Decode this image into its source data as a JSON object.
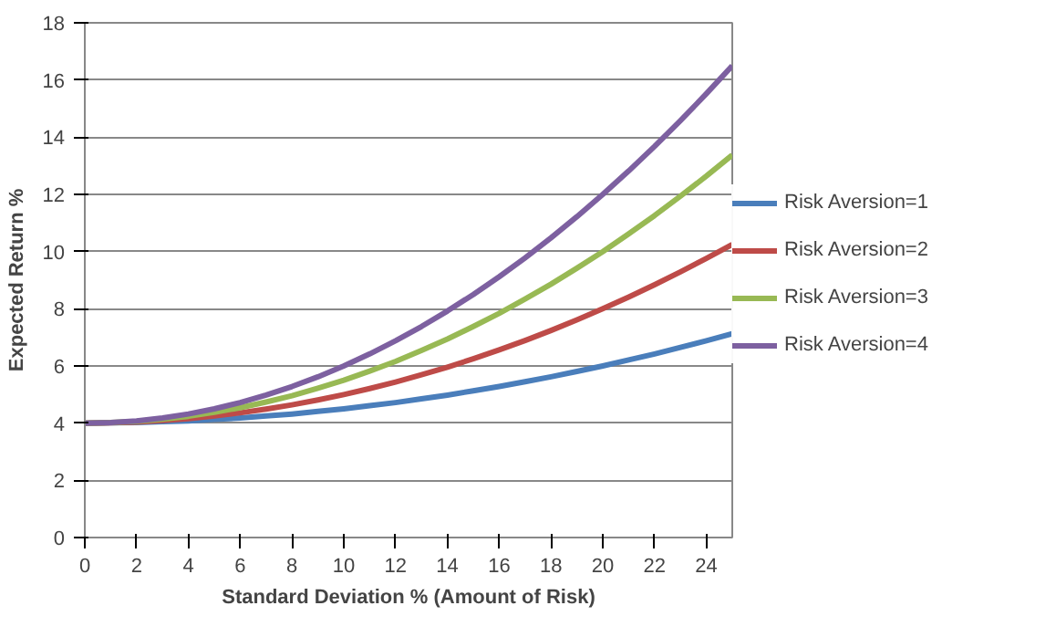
{
  "chart_data": {
    "type": "line",
    "xlabel": "Standard Deviation % (Amount of Risk)",
    "ylabel": "Expected Return %",
    "x": [
      0,
      1,
      2,
      3,
      4,
      5,
      6,
      7,
      8,
      9,
      10,
      11,
      12,
      13,
      14,
      15,
      16,
      17,
      18,
      19,
      20,
      21,
      22,
      23,
      24,
      25
    ],
    "xlim": [
      0,
      25
    ],
    "xticks": [
      0,
      2,
      4,
      6,
      8,
      10,
      12,
      14,
      16,
      18,
      20,
      22,
      24
    ],
    "ylim": [
      0,
      18
    ],
    "yticks": [
      0,
      2,
      4,
      6,
      8,
      10,
      12,
      14,
      16,
      18
    ],
    "grid": "y",
    "legend": "right",
    "marker": "none",
    "line_style": "solid",
    "series": [
      {
        "name": "Risk Aversion=1",
        "color": "#4a7ebb",
        "values": [
          4.0,
          4.01,
          4.02,
          4.05,
          4.08,
          4.13,
          4.18,
          4.25,
          4.32,
          4.41,
          4.5,
          4.61,
          4.72,
          4.85,
          4.98,
          5.13,
          5.28,
          5.45,
          5.62,
          5.81,
          6.0,
          6.21,
          6.42,
          6.65,
          6.88,
          7.13
        ]
      },
      {
        "name": "Risk Aversion=2",
        "color": "#be4b48",
        "values": [
          4.0,
          4.01,
          4.04,
          4.09,
          4.16,
          4.25,
          4.36,
          4.49,
          4.64,
          4.81,
          5.0,
          5.21,
          5.44,
          5.69,
          5.96,
          6.25,
          6.56,
          6.89,
          7.24,
          7.61,
          8.0,
          8.41,
          8.84,
          9.29,
          9.76,
          10.25
        ]
      },
      {
        "name": "Risk Aversion=3",
        "color": "#98b954",
        "values": [
          4.0,
          4.02,
          4.06,
          4.14,
          4.24,
          4.38,
          4.54,
          4.74,
          4.96,
          5.22,
          5.5,
          5.82,
          6.16,
          6.54,
          6.94,
          7.38,
          7.84,
          8.34,
          8.86,
          9.42,
          10.0,
          10.62,
          11.26,
          11.94,
          12.64,
          13.38
        ]
      },
      {
        "name": "Risk Aversion=4",
        "color": "#7d60a0",
        "values": [
          4.0,
          4.02,
          4.08,
          4.18,
          4.32,
          4.5,
          4.72,
          4.98,
          5.28,
          5.62,
          6.0,
          6.42,
          6.88,
          7.38,
          7.92,
          8.5,
          9.12,
          9.78,
          10.48,
          11.22,
          12.0,
          12.82,
          13.68,
          14.58,
          15.52,
          16.5
        ]
      }
    ]
  }
}
